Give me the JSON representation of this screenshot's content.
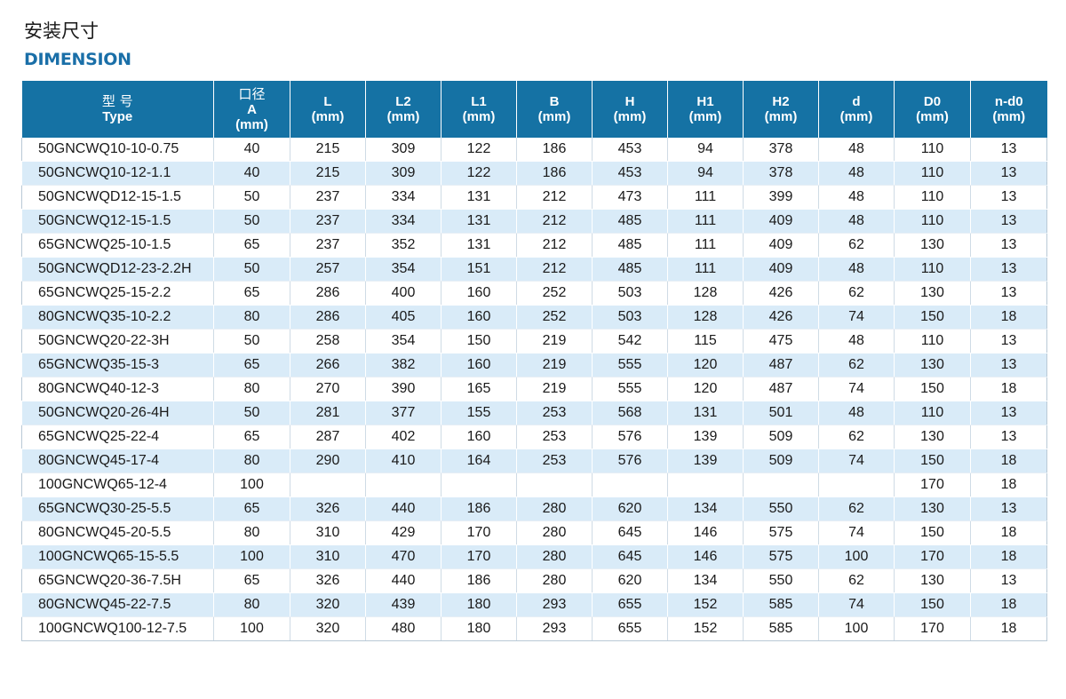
{
  "header": {
    "title_cn": "安装尺寸",
    "title_en": "DIMENSION"
  },
  "table": {
    "columns": [
      {
        "l1": "型 号",
        "l2": "Type",
        "l3": ""
      },
      {
        "l1": "口径",
        "l2": "A",
        "l3": "(mm)"
      },
      {
        "l1": "L",
        "l2": "(mm)",
        "l3": ""
      },
      {
        "l1": "L2",
        "l2": "(mm)",
        "l3": ""
      },
      {
        "l1": "L1",
        "l2": "(mm)",
        "l3": ""
      },
      {
        "l1": "B",
        "l2": "(mm)",
        "l3": ""
      },
      {
        "l1": "H",
        "l2": "(mm)",
        "l3": ""
      },
      {
        "l1": "H1",
        "l2": "(mm)",
        "l3": ""
      },
      {
        "l1": "H2",
        "l2": "(mm)",
        "l3": ""
      },
      {
        "l1": "d",
        "l2": "(mm)",
        "l3": ""
      },
      {
        "l1": "D0",
        "l2": "(mm)",
        "l3": ""
      },
      {
        "l1": "n-d0",
        "l2": "(mm)",
        "l3": ""
      }
    ],
    "rows": [
      [
        "50GNCWQ10-10-0.75",
        "40",
        "215",
        "309",
        "122",
        "186",
        "453",
        "94",
        "378",
        "48",
        "110",
        "13"
      ],
      [
        "50GNCWQ10-12-1.1",
        "40",
        "215",
        "309",
        "122",
        "186",
        "453",
        "94",
        "378",
        "48",
        "110",
        "13"
      ],
      [
        "50GNCWQD12-15-1.5",
        "50",
        "237",
        "334",
        "131",
        "212",
        "473",
        "111",
        "399",
        "48",
        "110",
        "13"
      ],
      [
        "50GNCWQ12-15-1.5",
        "50",
        "237",
        "334",
        "131",
        "212",
        "485",
        "111",
        "409",
        "48",
        "110",
        "13"
      ],
      [
        "65GNCWQ25-10-1.5",
        "65",
        "237",
        "352",
        "131",
        "212",
        "485",
        "111",
        "409",
        "62",
        "130",
        "13"
      ],
      [
        "50GNCWQD12-23-2.2H",
        "50",
        "257",
        "354",
        "151",
        "212",
        "485",
        "111",
        "409",
        "48",
        "110",
        "13"
      ],
      [
        "65GNCWQ25-15-2.2",
        "65",
        "286",
        "400",
        "160",
        "252",
        "503",
        "128",
        "426",
        "62",
        "130",
        "13"
      ],
      [
        "80GNCWQ35-10-2.2",
        "80",
        "286",
        "405",
        "160",
        "252",
        "503",
        "128",
        "426",
        "74",
        "150",
        "18"
      ],
      [
        "50GNCWQ20-22-3H",
        "50",
        "258",
        "354",
        "150",
        "219",
        "542",
        "115",
        "475",
        "48",
        "110",
        "13"
      ],
      [
        "65GNCWQ35-15-3",
        "65",
        "266",
        "382",
        "160",
        "219",
        "555",
        "120",
        "487",
        "62",
        "130",
        "13"
      ],
      [
        "80GNCWQ40-12-3",
        "80",
        "270",
        "390",
        "165",
        "219",
        "555",
        "120",
        "487",
        "74",
        "150",
        "18"
      ],
      [
        "50GNCWQ20-26-4H",
        "50",
        "281",
        "377",
        "155",
        "253",
        "568",
        "131",
        "501",
        "48",
        "110",
        "13"
      ],
      [
        "65GNCWQ25-22-4",
        "65",
        "287",
        "402",
        "160",
        "253",
        "576",
        "139",
        "509",
        "62",
        "130",
        "13"
      ],
      [
        "80GNCWQ45-17-4",
        "80",
        "290",
        "410",
        "164",
        "253",
        "576",
        "139",
        "509",
        "74",
        "150",
        "18"
      ],
      [
        "100GNCWQ65-12-4",
        "100",
        "",
        "",
        "",
        "",
        "",
        "",
        "",
        "",
        "170",
        "18"
      ],
      [
        "65GNCWQ30-25-5.5",
        "65",
        "326",
        "440",
        "186",
        "280",
        "620",
        "134",
        "550",
        "62",
        "130",
        "13"
      ],
      [
        "80GNCWQ45-20-5.5",
        "80",
        "310",
        "429",
        "170",
        "280",
        "645",
        "146",
        "575",
        "74",
        "150",
        "18"
      ],
      [
        "100GNCWQ65-15-5.5",
        "100",
        "310",
        "470",
        "170",
        "280",
        "645",
        "146",
        "575",
        "100",
        "170",
        "18"
      ],
      [
        "65GNCWQ20-36-7.5H",
        "65",
        "326",
        "440",
        "186",
        "280",
        "620",
        "134",
        "550",
        "62",
        "130",
        "13"
      ],
      [
        "80GNCWQ45-22-7.5",
        "80",
        "320",
        "439",
        "180",
        "293",
        "655",
        "152",
        "585",
        "74",
        "150",
        "18"
      ],
      [
        "100GNCWQ100-12-7.5",
        "100",
        "320",
        "480",
        "180",
        "293",
        "655",
        "152",
        "585",
        "100",
        "170",
        "18"
      ]
    ]
  },
  "colors": {
    "header_bg": "#1572a4",
    "title_en": "#1a6fa8",
    "row_alt_bg": "#d9ebf8"
  }
}
